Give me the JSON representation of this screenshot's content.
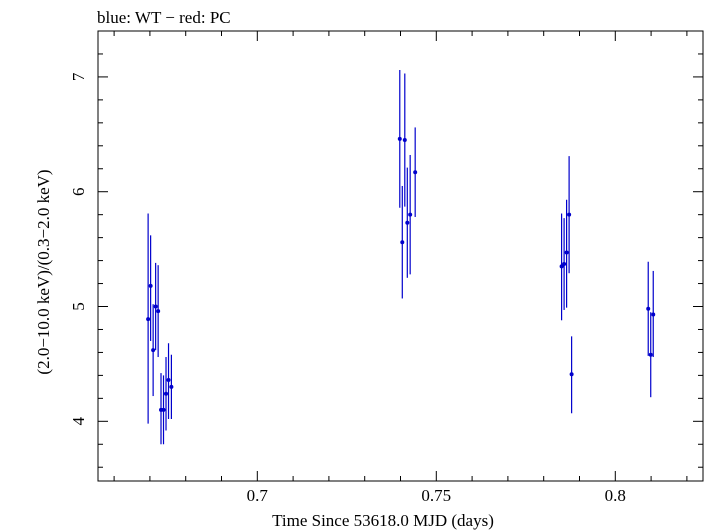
{
  "chart_data": {
    "type": "scatter",
    "title": "blue: WT − red: PC",
    "xlabel": "Time Since 53618.0 MJD (days)",
    "ylabel": "(2.0−10.0 keV)/(0.3−2.0 keV)",
    "xlim": [
      0.6555,
      0.8245
    ],
    "ylim": [
      3.48,
      7.4
    ],
    "x_ticks_major": [
      0.7,
      0.75,
      0.8
    ],
    "x_tick_labels": [
      "0.7",
      "0.75",
      "0.8"
    ],
    "y_ticks_major": [
      4,
      5,
      6,
      7
    ],
    "y_tick_labels": [
      "4",
      "5",
      "6",
      "7"
    ],
    "grid": false,
    "series": [
      {
        "color": "#0000cc",
        "points": [
          {
            "x": 0.6695,
            "y": 4.89,
            "ylo": 3.98,
            "yhi": 5.81
          },
          {
            "x": 0.6702,
            "y": 5.18,
            "ylo": 4.7,
            "yhi": 5.62
          },
          {
            "x": 0.6709,
            "y": 4.62,
            "ylo": 4.22,
            "yhi": 5.02
          },
          {
            "x": 0.6716,
            "y": 5.0,
            "ylo": 4.62,
            "yhi": 5.38
          },
          {
            "x": 0.6723,
            "y": 4.96,
            "ylo": 4.56,
            "yhi": 5.36
          },
          {
            "x": 0.6731,
            "y": 4.1,
            "ylo": 3.8,
            "yhi": 4.42
          },
          {
            "x": 0.6738,
            "y": 4.1,
            "ylo": 3.8,
            "yhi": 4.4
          },
          {
            "x": 0.6745,
            "y": 4.24,
            "ylo": 3.92,
            "yhi": 4.56
          },
          {
            "x": 0.6752,
            "y": 4.36,
            "ylo": 4.02,
            "yhi": 4.68
          },
          {
            "x": 0.676,
            "y": 4.3,
            "ylo": 4.02,
            "yhi": 4.58
          },
          {
            "x": 0.7398,
            "y": 6.46,
            "ylo": 5.86,
            "yhi": 7.06
          },
          {
            "x": 0.7405,
            "y": 5.56,
            "ylo": 5.07,
            "yhi": 6.05
          },
          {
            "x": 0.7412,
            "y": 6.45,
            "ylo": 5.87,
            "yhi": 7.03
          },
          {
            "x": 0.7419,
            "y": 5.73,
            "ylo": 5.25,
            "yhi": 6.21
          },
          {
            "x": 0.7427,
            "y": 5.8,
            "ylo": 5.28,
            "yhi": 6.32
          },
          {
            "x": 0.7441,
            "y": 6.17,
            "ylo": 5.78,
            "yhi": 6.56
          },
          {
            "x": 0.785,
            "y": 5.35,
            "ylo": 4.88,
            "yhi": 5.81
          },
          {
            "x": 0.7857,
            "y": 5.37,
            "ylo": 4.97,
            "yhi": 5.77
          },
          {
            "x": 0.7864,
            "y": 5.47,
            "ylo": 4.99,
            "yhi": 5.93
          },
          {
            "x": 0.7871,
            "y": 5.8,
            "ylo": 5.29,
            "yhi": 6.31
          },
          {
            "x": 0.7878,
            "y": 4.41,
            "ylo": 4.07,
            "yhi": 4.74
          },
          {
            "x": 0.8092,
            "y": 4.98,
            "ylo": 4.57,
            "yhi": 5.39
          },
          {
            "x": 0.8099,
            "y": 4.58,
            "ylo": 4.21,
            "yhi": 4.95
          },
          {
            "x": 0.8106,
            "y": 4.93,
            "ylo": 4.56,
            "yhi": 5.31
          }
        ]
      }
    ]
  }
}
